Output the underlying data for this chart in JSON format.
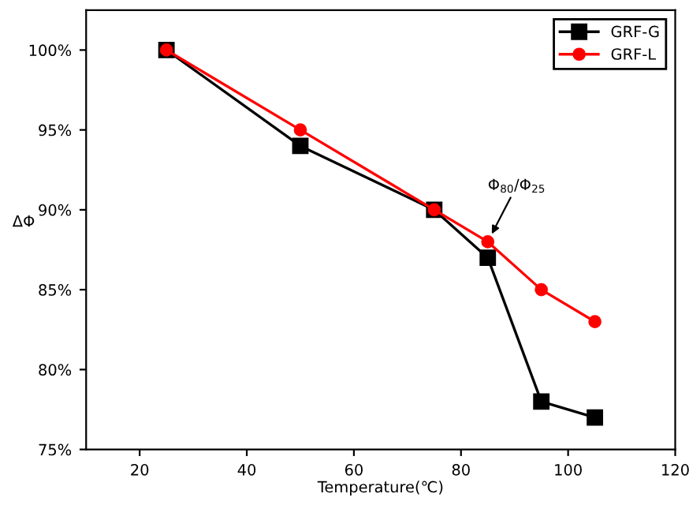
{
  "chart_data": {
    "type": "line",
    "xlabel": "Temperature(℃)",
    "ylabel": "ΔΦ",
    "x": [
      25,
      50,
      75,
      85,
      95,
      105
    ],
    "series": [
      {
        "name": "GRF-G",
        "color": "#000000",
        "marker": "square",
        "values": [
          100,
          94,
          90,
          87,
          78,
          77
        ]
      },
      {
        "name": "GRF-L",
        "color": "#ff0000",
        "marker": "circle",
        "values": [
          100,
          95,
          90,
          88,
          85,
          83
        ]
      }
    ],
    "xlim": [
      10,
      120
    ],
    "xticks": [
      20,
      40,
      60,
      80,
      100,
      120
    ],
    "ylim": [
      75,
      102.5
    ],
    "yticks": [
      {
        "value": 75,
        "label": "75%"
      },
      {
        "value": 80,
        "label": "80%"
      },
      {
        "value": 85,
        "label": "85%"
      },
      {
        "value": 90,
        "label": "90%"
      },
      {
        "value": 95,
        "label": "95%"
      },
      {
        "value": 100,
        "label": "100%"
      }
    ],
    "annotations": [
      {
        "text": "Φ$_{80}$/Φ$_{25}$",
        "x": 85,
        "y": 88
      }
    ],
    "legend": "top right",
    "grid": false,
    "line_style": "solid"
  }
}
